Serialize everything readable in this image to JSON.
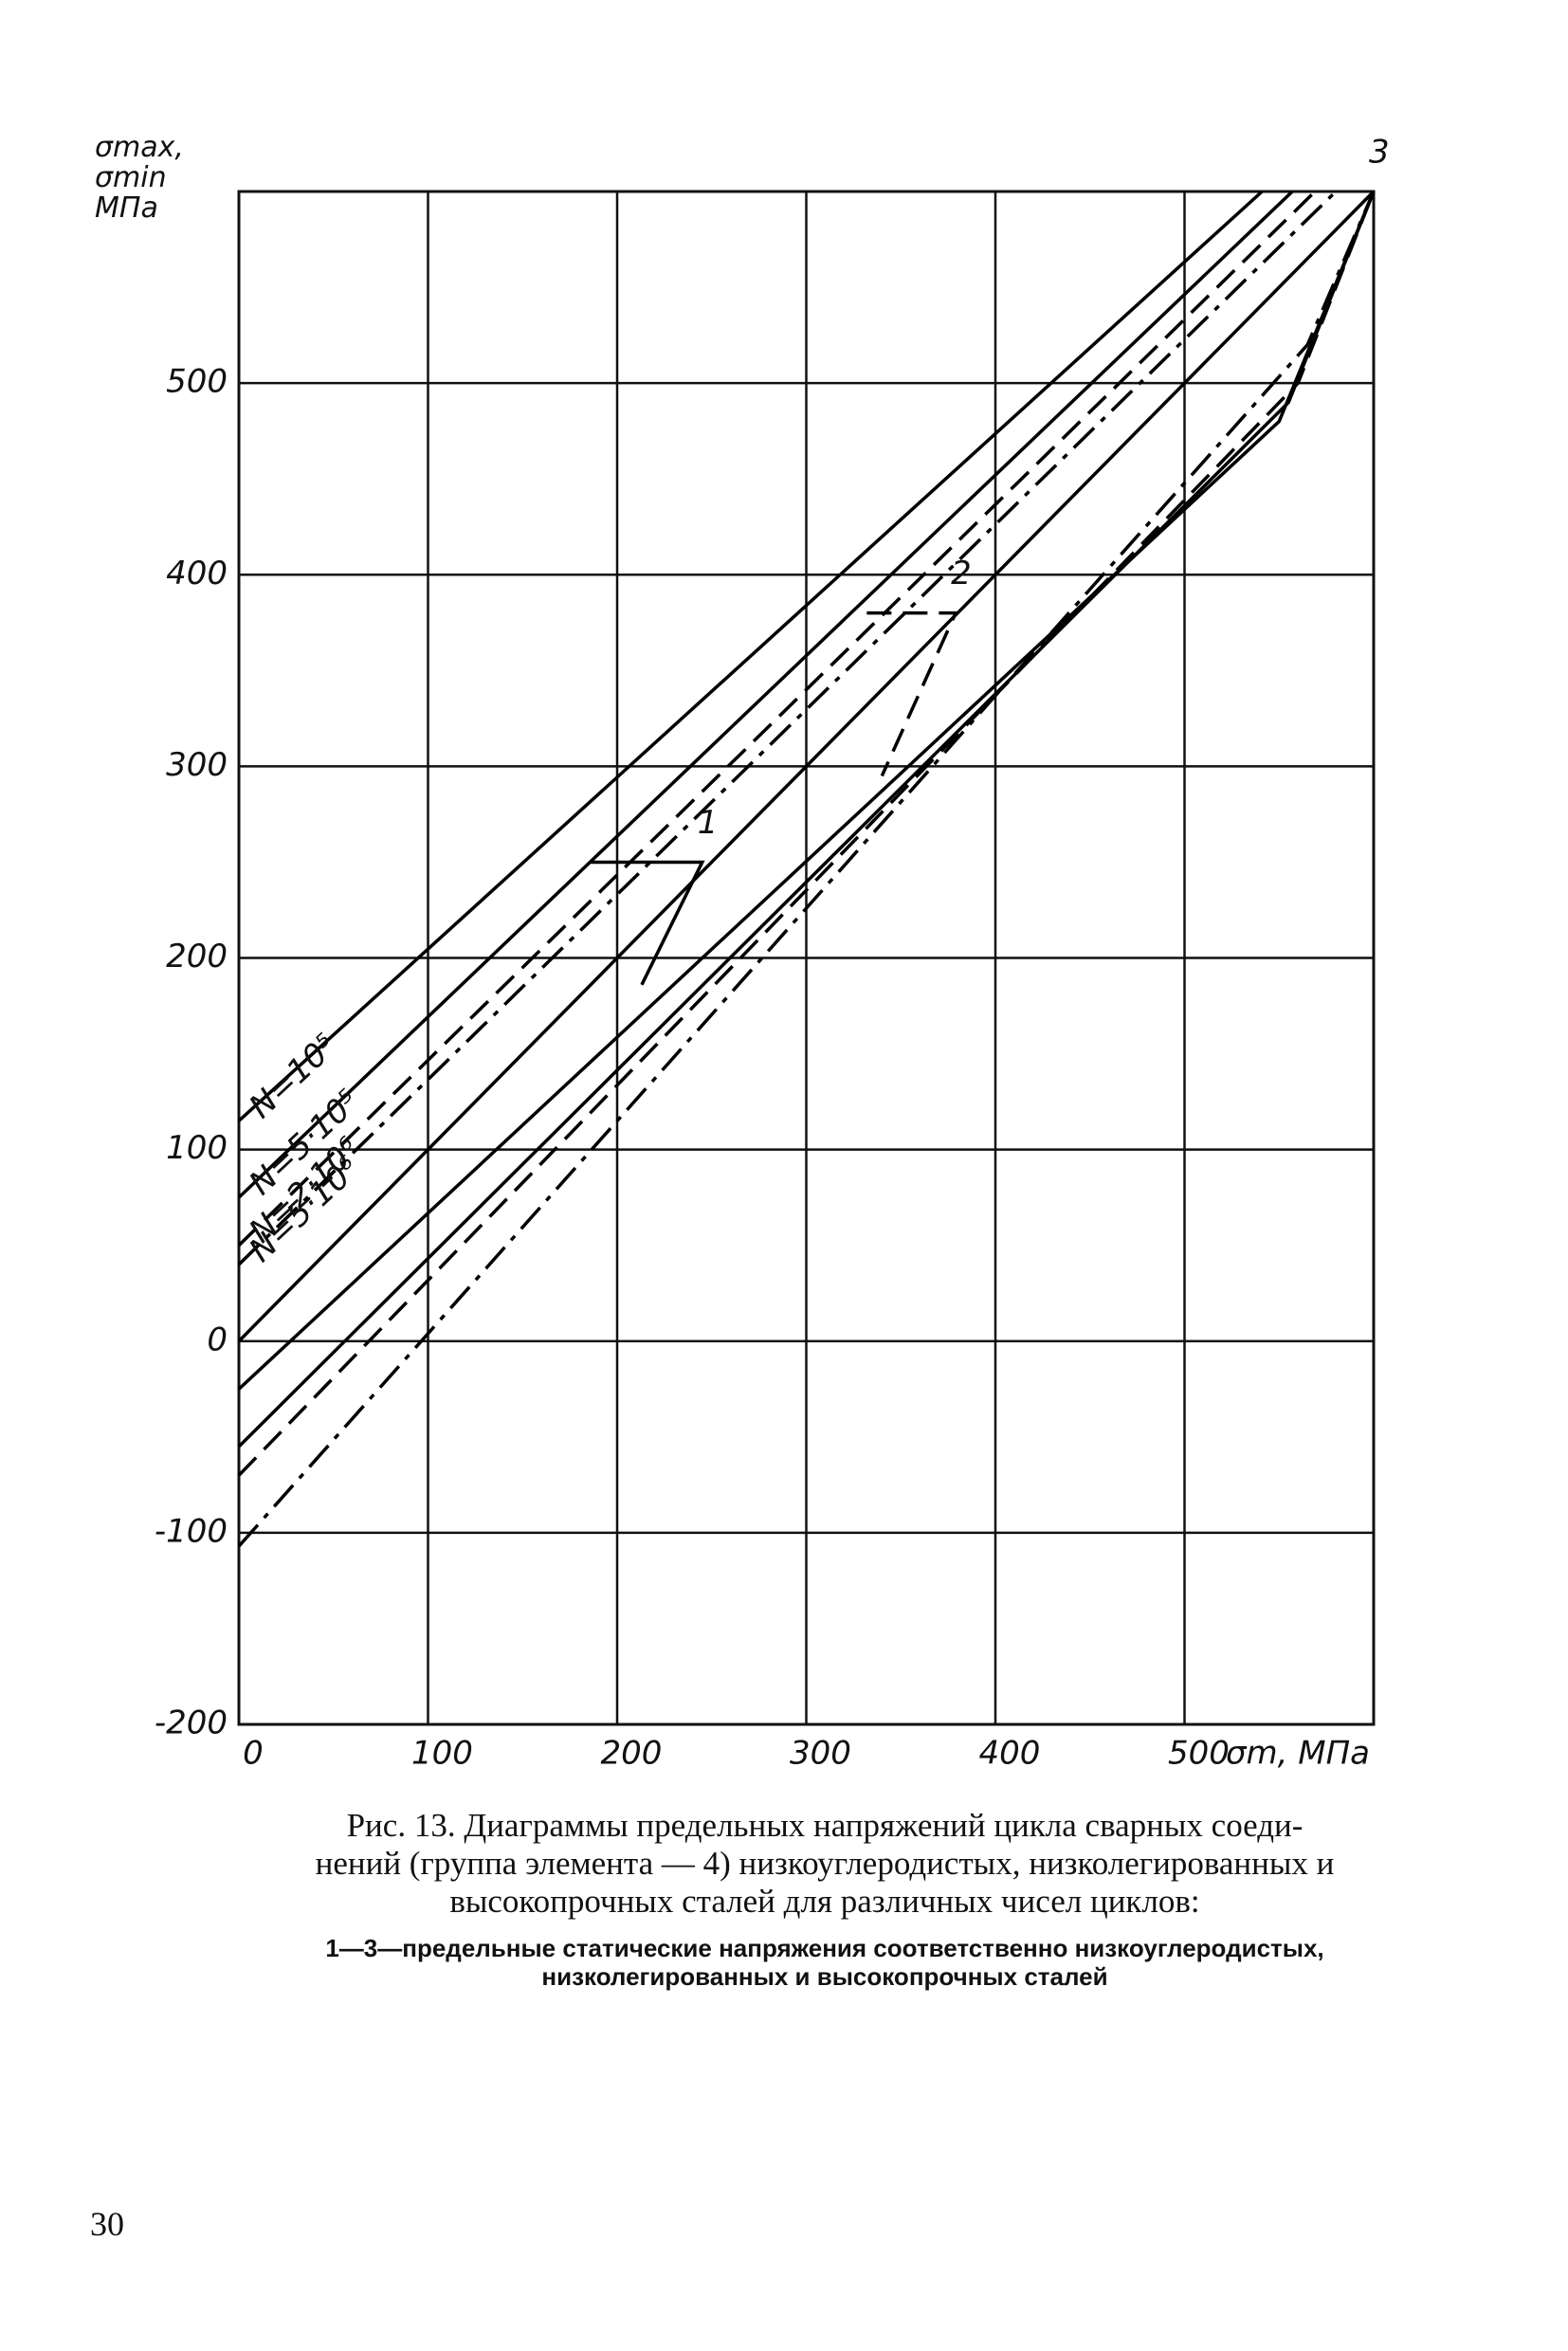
{
  "chart_data": {
    "type": "line",
    "ylabel": "σmax, σmin МПа",
    "xlabel": "σm, МПа",
    "xlim": [
      0,
      600
    ],
    "xticks": [
      0,
      100,
      200,
      300,
      400,
      500
    ],
    "ylim": [
      -200,
      600
    ],
    "yticks": [
      -200,
      -100,
      0,
      100,
      200,
      300,
      400,
      500
    ],
    "grid": true,
    "series": [
      {
        "name": "N=10⁵",
        "color": "#000",
        "dash": "solid",
        "x": [
          0,
          541
        ],
        "values": [
          115,
          600
        ]
      },
      {
        "name": "N=5·10⁵",
        "color": "#000",
        "dash": "solid",
        "x": [
          0,
          557
        ],
        "values": [
          75,
          600
        ]
      },
      {
        "name": "N=2·10⁶",
        "color": "#000",
        "dash": "dashed",
        "x": [
          0,
          569
        ],
        "values": [
          50,
          600
        ]
      },
      {
        "name": "N=5·10⁶",
        "color": "#000",
        "dash": "dashdot",
        "x": [
          0,
          580
        ],
        "values": [
          40,
          600
        ]
      },
      {
        "color": "#000",
        "dash": "solid",
        "x": [
          0,
          550,
          600
        ],
        "values": [
          -25,
          480,
          600
        ]
      },
      {
        "color": "#000",
        "dash": "solid",
        "x": [
          0,
          555,
          600
        ],
        "values": [
          -55,
          490,
          600
        ]
      },
      {
        "color": "#000",
        "dash": "dashed",
        "x": [
          0,
          560,
          600
        ],
        "values": [
          -70,
          500,
          600
        ]
      },
      {
        "color": "#000",
        "dash": "dashdot",
        "x": [
          0,
          565,
          600
        ],
        "values": [
          -107,
          520,
          600
        ]
      },
      {
        "name": "1",
        "color": "#000",
        "dash": "solid",
        "x": [
          186,
          245,
          213
        ],
        "values": [
          250,
          250,
          186
        ]
      },
      {
        "name": "2",
        "color": "#000",
        "dash": "dashed",
        "x": [
          332,
          379,
          340
        ],
        "values": [
          380,
          380,
          295
        ]
      },
      {
        "name": "3",
        "color": "#000",
        "dash": "solid",
        "x": [
          0,
          600
        ],
        "values": [
          0,
          600
        ]
      }
    ]
  },
  "caption": [
    "Рис. 13. Диаграммы предельных напряжений цикла сварных соеди-",
    "нений (группа элемента — 4) низкоуглеродистых, низколегированных и",
    "высокопрочных сталей для различных чисел циклов:"
  ],
  "note": [
    "1—3—предельные статические напряжения соответственно низкоуглеродистых,",
    "низколегированных и высокопрочных сталей"
  ],
  "page_number": "30"
}
